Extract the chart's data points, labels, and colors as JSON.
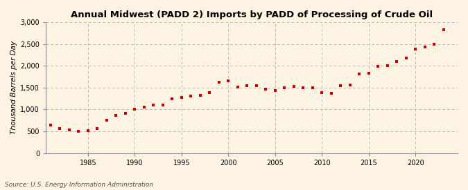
{
  "title": "Annual Midwest (PADD 2) Imports by PADD of Processing of Crude Oil",
  "ylabel": "Thousand Barrels per Day",
  "source": "Source: U.S. Energy Information Administration",
  "background_color": "#fdf3e3",
  "marker_color": "#cc0000",
  "grid_color": "#bbbbbb",
  "spine_color": "#888888",
  "ylim": [
    0,
    3000
  ],
  "yticks": [
    0,
    500,
    1000,
    1500,
    2000,
    2500,
    3000
  ],
  "xlim": [
    1980.5,
    2024.5
  ],
  "xticks": [
    1985,
    1990,
    1995,
    2000,
    2005,
    2010,
    2015,
    2020
  ],
  "years": [
    1981,
    1982,
    1983,
    1984,
    1985,
    1986,
    1987,
    1988,
    1989,
    1990,
    1991,
    1992,
    1993,
    1994,
    1995,
    1996,
    1997,
    1998,
    1999,
    2000,
    2001,
    2002,
    2003,
    2004,
    2005,
    2006,
    2007,
    2008,
    2009,
    2010,
    2011,
    2012,
    2013,
    2014,
    2015,
    2016,
    2017,
    2018,
    2019,
    2020,
    2021,
    2022,
    2023
  ],
  "values": [
    650,
    560,
    530,
    500,
    510,
    560,
    760,
    860,
    920,
    1000,
    1060,
    1110,
    1110,
    1240,
    1270,
    1300,
    1330,
    1390,
    1620,
    1650,
    1510,
    1540,
    1550,
    1470,
    1440,
    1500,
    1530,
    1500,
    1500,
    1390,
    1370,
    1540,
    1560,
    1820,
    1830,
    1990,
    2000,
    2100,
    2180,
    2390,
    2430,
    2500,
    2820
  ]
}
